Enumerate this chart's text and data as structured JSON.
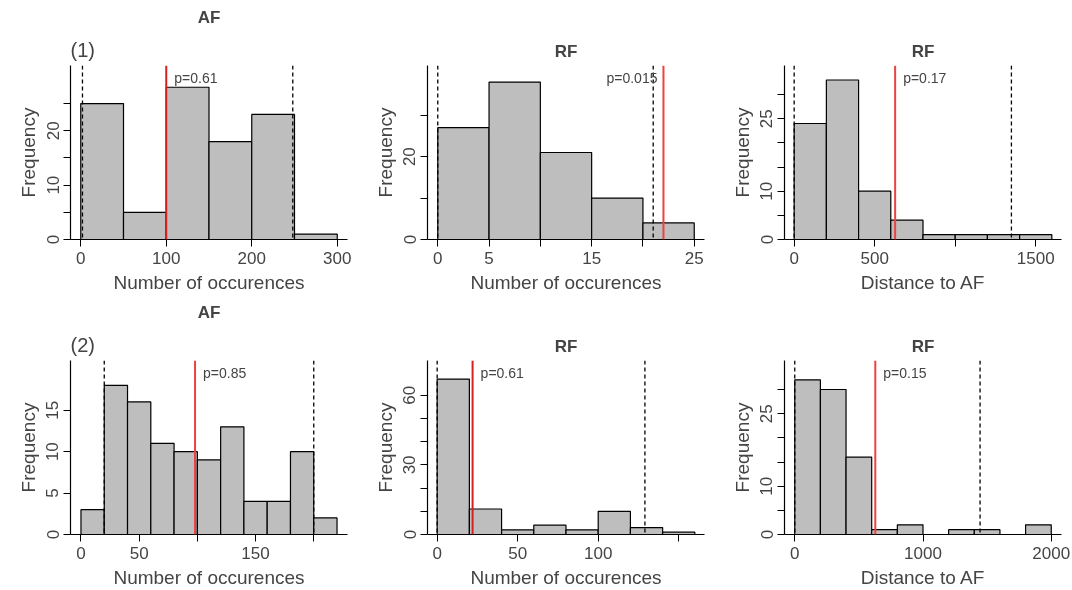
{
  "chart_data": [
    {
      "type": "histogram",
      "title": "AF",
      "xlabel": "Number of occurences",
      "ylabel": "Frequency",
      "color": "#bebebe",
      "bins": [
        0,
        50,
        100,
        150,
        200,
        250,
        300
      ],
      "values": [
        25,
        5,
        28,
        18,
        23,
        1
      ],
      "xlim": [
        -12,
        312
      ],
      "ylim": [
        0,
        32
      ],
      "xticks": [
        0,
        100,
        200,
        300
      ],
      "yticks": [
        0,
        {
          "value": 5,
          "label": null
        },
        10,
        {
          "value": 15,
          "label": null
        },
        20,
        {
          "value": 25,
          "label": null
        }
      ],
      "ref_lines": [
        {
          "axis": "x",
          "value": 100,
          "color": "#d62020",
          "line_style": "solid"
        },
        {
          "axis": "x",
          "value": 2,
          "color": "#000000",
          "line_style": "dashed"
        },
        {
          "axis": "x",
          "value": 248,
          "color": "#000000",
          "line_style": "dashed"
        }
      ],
      "annotations": [
        "(1)",
        "p=0.61"
      ],
      "grid": false
    },
    {
      "type": "histogram",
      "title": "RF",
      "xlabel": "Number of occurences",
      "ylabel": "Frequency",
      "color": "#bebebe",
      "bins": [
        0,
        5,
        10,
        15,
        20,
        25
      ],
      "values": [
        27,
        38,
        21,
        10,
        4
      ],
      "xlim": [
        -1,
        26
      ],
      "ylim": [
        0,
        42
      ],
      "xticks": [
        0,
        5,
        {
          "value": 10,
          "label": null
        },
        15,
        {
          "value": 20,
          "label": null
        },
        25
      ],
      "yticks": [
        0,
        {
          "value": 10,
          "label": null
        },
        20,
        {
          "value": 30,
          "label": null
        }
      ],
      "ref_lines": [
        {
          "axis": "x",
          "value": 22,
          "color": "#f04040",
          "line_style": "solid"
        },
        {
          "axis": "x",
          "value": 0,
          "color": "#000000",
          "line_style": "dashed"
        },
        {
          "axis": "x",
          "value": 21,
          "color": "#000000",
          "line_style": "dashed"
        }
      ],
      "annotations": [
        "p=0.015"
      ],
      "grid": false
    },
    {
      "type": "histogram",
      "title": "RF",
      "xlabel": "Distance to AF",
      "ylabel": "Frequency",
      "color": "#bebebe",
      "bins": [
        0,
        200,
        400,
        600,
        800,
        1000,
        1200,
        1400,
        1600
      ],
      "values": [
        24,
        33,
        10,
        4,
        1,
        1,
        1,
        1
      ],
      "xlim": [
        -60,
        1660
      ],
      "ylim": [
        0,
        36
      ],
      "xticks": [
        0,
        500,
        {
          "value": 1000,
          "label": null
        },
        1500
      ],
      "yticks": [
        0,
        {
          "value": 5,
          "label": null
        },
        10,
        {
          "value": 15,
          "label": null
        },
        {
          "value": 20,
          "label": null
        },
        25,
        {
          "value": 30,
          "label": null
        }
      ],
      "ref_lines": [
        {
          "axis": "x",
          "value": 627,
          "color": "#f04040",
          "line_style": "solid"
        },
        {
          "axis": "x",
          "value": 0,
          "color": "#000000",
          "line_style": "dashed"
        },
        {
          "axis": "x",
          "value": 1349,
          "color": "#000000",
          "line_style": "dashed"
        }
      ],
      "annotations": [
        "p=0.17"
      ],
      "grid": false
    },
    {
      "type": "histogram",
      "title": "AF",
      "xlabel": "Number of occurences",
      "ylabel": "Frequency",
      "color": "#bebebe",
      "bins": [
        0,
        20,
        40,
        60,
        80,
        100,
        120,
        140,
        160,
        180,
        200,
        220
      ],
      "values": [
        3,
        18,
        16,
        11,
        10,
        9,
        13,
        4,
        4,
        10,
        2
      ],
      "xlim": [
        -9,
        229
      ],
      "ylim": [
        0,
        21
      ],
      "xticks": [
        0,
        50,
        {
          "value": 100,
          "label": null
        },
        150,
        {
          "value": 200,
          "label": null
        }
      ],
      "yticks": [
        0,
        5,
        10,
        15
      ],
      "ref_lines": [
        {
          "axis": "x",
          "value": 98,
          "color": "#f04040",
          "line_style": "solid"
        },
        {
          "axis": "x",
          "value": 20,
          "color": "#000000",
          "line_style": "dashed"
        },
        {
          "axis": "x",
          "value": 200,
          "color": "#000000",
          "line_style": "dashed"
        }
      ],
      "annotations": [
        "(2)",
        "p=0.85"
      ],
      "grid": false
    },
    {
      "type": "histogram",
      "title": "RF",
      "xlabel": "Number of occurences",
      "ylabel": "Frequency",
      "color": "#bebebe",
      "bins": [
        0,
        20,
        40,
        60,
        80,
        100,
        120,
        140,
        160
      ],
      "values": [
        67,
        11,
        2,
        4,
        2,
        10,
        3,
        1
      ],
      "xlim": [
        -6,
        166
      ],
      "ylim": [
        0,
        75
      ],
      "xticks": [
        0,
        50,
        100,
        {
          "value": 150,
          "label": null
        }
      ],
      "yticks": [
        0,
        {
          "value": 10,
          "label": null
        },
        {
          "value": 20,
          "label": null
        },
        30,
        {
          "value": 40,
          "label": null
        },
        {
          "value": 50,
          "label": null
        },
        60
      ],
      "ref_lines": [
        {
          "axis": "x",
          "value": 22,
          "color": "#d62020",
          "line_style": "solid"
        },
        {
          "axis": "x",
          "value": 0,
          "color": "#000000",
          "line_style": "dashed"
        },
        {
          "axis": "x",
          "value": 129,
          "color": "#000000",
          "line_style": "dashed"
        }
      ],
      "annotations": [
        "p=0.61"
      ],
      "grid": false
    },
    {
      "type": "histogram",
      "title": "RF",
      "xlabel": "Distance to AF",
      "ylabel": "Frequency",
      "color": "#bebebe",
      "bins": [
        0,
        200,
        400,
        600,
        800,
        1000,
        1200,
        1400,
        1600,
        1800,
        2000
      ],
      "values": [
        32,
        30,
        16,
        1,
        2,
        0,
        1,
        1,
        0,
        2
      ],
      "xlim": [
        -80,
        2080
      ],
      "ylim": [
        0,
        36
      ],
      "xticks": [
        0,
        1000,
        2000
      ],
      "yticks": [
        0,
        {
          "value": 5,
          "label": null
        },
        10,
        {
          "value": 15,
          "label": null
        },
        {
          "value": 20,
          "label": null
        },
        25,
        {
          "value": 30,
          "label": null
        }
      ],
      "ref_lines": [
        {
          "axis": "x",
          "value": 628,
          "color": "#f04040",
          "line_style": "solid"
        },
        {
          "axis": "x",
          "value": 0,
          "color": "#000000",
          "line_style": "dashed"
        },
        {
          "axis": "x",
          "value": 1445,
          "color": "#000000",
          "line_style": "dashed"
        }
      ],
      "annotations": [
        "p=0.15"
      ],
      "grid": false
    }
  ]
}
